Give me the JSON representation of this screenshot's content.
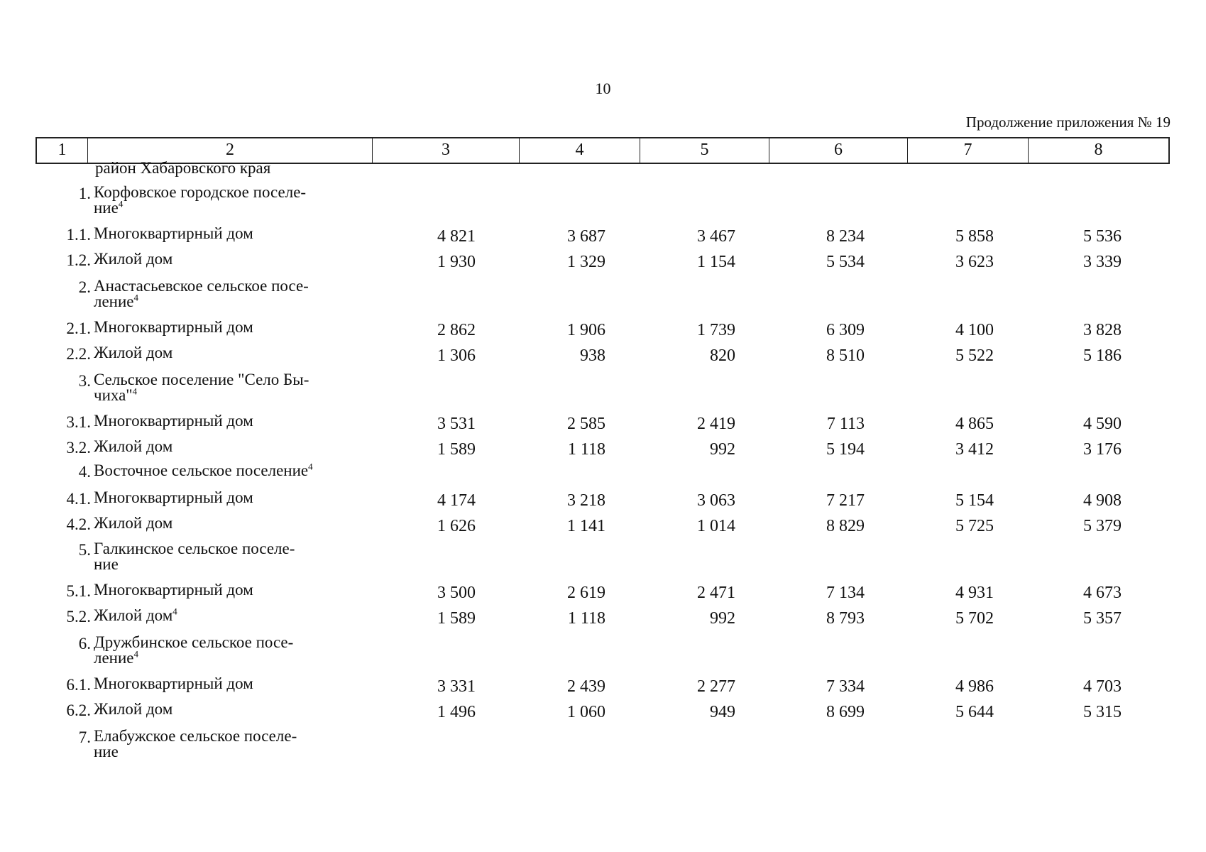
{
  "page_number": "10",
  "continuation_label": "Продолжение приложения № 19",
  "header_columns": [
    "1",
    "2",
    "3",
    "4",
    "5",
    "6",
    "7",
    "8"
  ],
  "district_label": "район Хабаровского края",
  "rows": [
    {
      "num": "1.",
      "name": "Корфовское городское поселе-",
      "name2": "ние",
      "sup": "4",
      "values": []
    },
    {
      "num": "1.1.",
      "name": "Многоквартирный дом",
      "values": [
        "4 821",
        "3 687",
        "3 467",
        "8 234",
        "5 858",
        "5 536"
      ]
    },
    {
      "num": "1.2.",
      "name": "Жилой дом",
      "values": [
        "1 930",
        "1 329",
        "1 154",
        "5 534",
        "3 623",
        "3 339"
      ]
    },
    {
      "num": "2.",
      "name": "Анастасьевское сельское посе-",
      "name2": "ление",
      "sup": "4",
      "values": []
    },
    {
      "num": "2.1.",
      "name": "Многоквартирный дом",
      "values": [
        "2 862",
        "1 906",
        "1 739",
        "6 309",
        "4 100",
        "3 828"
      ]
    },
    {
      "num": "2.2.",
      "name": "Жилой дом",
      "values": [
        "1 306",
        "938",
        "820",
        "8 510",
        "5 522",
        "5 186"
      ]
    },
    {
      "num": "3.",
      "name": "Сельское поселение \"Село Бы-",
      "name2": "чиха\"",
      "sup": "4",
      "values": []
    },
    {
      "num": "3.1.",
      "name": "Многоквартирный дом",
      "values": [
        "3 531",
        "2 585",
        "2 419",
        "7 113",
        "4 865",
        "4 590"
      ]
    },
    {
      "num": "3.2.",
      "name": "Жилой дом",
      "values": [
        "1 589",
        "1 118",
        "992",
        "5 194",
        "3 412",
        "3 176"
      ]
    },
    {
      "num": "4.",
      "name": "Восточное сельское поселение",
      "sup": "4",
      "values": []
    },
    {
      "num": "4.1.",
      "name": "Многоквартирный дом",
      "values": [
        "4 174",
        "3 218",
        "3 063",
        "7 217",
        "5 154",
        "4 908"
      ]
    },
    {
      "num": "4.2.",
      "name": "Жилой дом",
      "values": [
        "1 626",
        "1 141",
        "1 014",
        "8 829",
        "5 725",
        "5 379"
      ]
    },
    {
      "num": "5.",
      "name": "Галкинское сельское поселе-",
      "name2": "ние",
      "values": []
    },
    {
      "num": "5.1.",
      "name": "Многоквартирный дом",
      "values": [
        "3 500",
        "2 619",
        "2 471",
        "7 134",
        "4 931",
        "4 673"
      ]
    },
    {
      "num": "5.2.",
      "name": "Жилой дом",
      "sup": "4",
      "values": [
        "1 589",
        "1 118",
        "992",
        "8 793",
        "5 702",
        "5 357"
      ]
    },
    {
      "num": "6.",
      "name": "Дружбинское сельское посе-",
      "name2": "ление",
      "sup": "4",
      "values": []
    },
    {
      "num": "6.1.",
      "name": "Многоквартирный дом",
      "values": [
        "3 331",
        "2 439",
        "2 277",
        "7 334",
        "4 986",
        "4 703"
      ]
    },
    {
      "num": "6.2.",
      "name": "Жилой дом",
      "values": [
        "1 496",
        "1 060",
        "949",
        "8 699",
        "5 644",
        "5 315"
      ]
    },
    {
      "num": "7.",
      "name": "Елабужское сельское поселе-",
      "name2": "ние",
      "values": []
    }
  ]
}
